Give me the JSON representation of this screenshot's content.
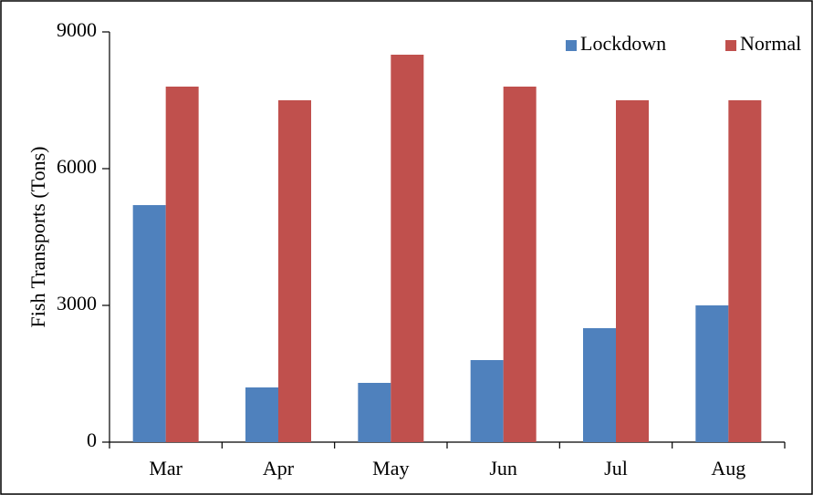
{
  "chart_data": {
    "type": "bar",
    "ylabel": "Fish Transports (Tons)",
    "categories": [
      "Mar",
      "Apr",
      "May",
      "Jun",
      "Jul",
      "Aug"
    ],
    "series": [
      {
        "name": "Lockdown",
        "color": "#4f81bd",
        "values": [
          5200,
          1200,
          1300,
          1800,
          2500,
          3000
        ]
      },
      {
        "name": "Normal",
        "color": "#c0504d",
        "values": [
          7800,
          7500,
          8500,
          7800,
          7500,
          7500
        ]
      }
    ],
    "ylim": [
      0,
      9000
    ],
    "yticks": [
      0,
      3000,
      6000,
      9000
    ],
    "grid": false,
    "legend": "top-right"
  }
}
